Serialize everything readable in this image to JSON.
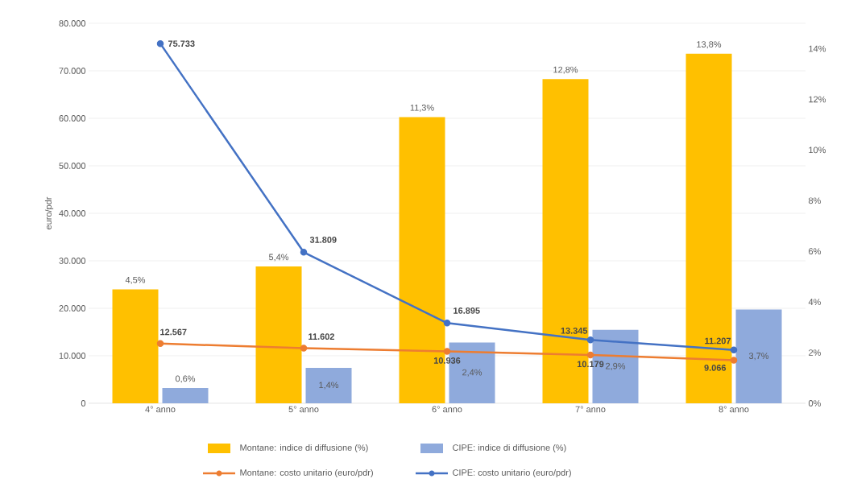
{
  "chart_data": {
    "type": "bar",
    "ylabel": "euro/pdr",
    "categories": [
      "4° anno",
      "5° anno",
      "6° anno",
      "7° anno",
      "8° anno"
    ],
    "series": [
      {
        "name": "Montane: indice di diffusione (%)",
        "axis": "y2",
        "color": "#ffc000",
        "values": [
          4.5,
          5.4,
          11.3,
          12.8,
          13.8
        ],
        "value_labels": [
          "4,5%",
          "5,4%",
          "11,3%",
          "12,8%",
          "13,8%"
        ]
      },
      {
        "name": "CIPE: indice di diffusione (%)",
        "axis": "y2",
        "color": "#8faadc",
        "values": [
          0.6,
          1.4,
          2.4,
          2.9,
          3.7
        ],
        "value_labels": [
          "0,6%",
          "1,4%",
          "2,4%",
          "2,9%",
          "3,7%"
        ]
      },
      {
        "name": "Montane: costo unitario (euro/pdr)",
        "type": "line",
        "color": "#ed7d31",
        "values": [
          12567,
          11602,
          10936,
          10179,
          9066
        ],
        "value_labels": [
          "12.567",
          "11.602",
          "10.936",
          "10.179",
          "9.066"
        ]
      },
      {
        "name": "CIPE: costo unitario (euro/pdr)",
        "type": "line",
        "color": "#4472c4",
        "values": [
          75733,
          31809,
          16895,
          13345,
          11207
        ],
        "value_labels": [
          "75.733",
          "31.809",
          "16.895",
          "13.345",
          "11.207"
        ]
      }
    ],
    "ylim": [
      0,
      80000
    ],
    "yticks": [
      {
        "value": 0,
        "label": "0"
      },
      {
        "value": 10000,
        "label": "10.000"
      },
      {
        "value": 20000,
        "label": "20.000"
      },
      {
        "value": 30000,
        "label": "30.000"
      },
      {
        "value": 40000,
        "label": "40.000"
      },
      {
        "value": 50000,
        "label": "50.000"
      },
      {
        "value": 60000,
        "label": "60.000"
      },
      {
        "value": 70000,
        "label": "70.000"
      },
      {
        "value": 80000,
        "label": "80.000"
      }
    ],
    "y2lim": [
      0,
      15
    ],
    "y2ticks": [
      {
        "value": 0,
        "label": "0%"
      },
      {
        "value": 2,
        "label": "2%"
      },
      {
        "value": 4,
        "label": "4%"
      },
      {
        "value": 6,
        "label": "6%"
      },
      {
        "value": 8,
        "label": "8%"
      },
      {
        "value": 10,
        "label": "10%"
      },
      {
        "value": 12,
        "label": "12%"
      },
      {
        "value": 14,
        "label": "14%"
      }
    ],
    "grid": "y",
    "legend": "bottom",
    "marker": "circle"
  }
}
